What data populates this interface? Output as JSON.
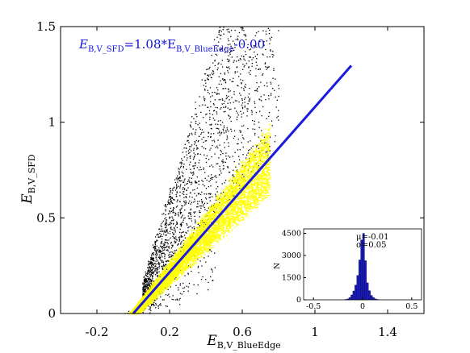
{
  "chart_data": [
    {
      "type": "scatter",
      "xlabel": {
        "main": "E",
        "sub": "B,V_BlueEdge"
      },
      "ylabel": {
        "main": "E",
        "sub": "B,V_SFD"
      },
      "xlim": [
        -0.4,
        1.6
      ],
      "ylim": [
        0,
        1.5
      ],
      "x_ticks": [
        -0.2,
        0.2,
        0.6,
        1,
        1.4
      ],
      "x_tick_labels": [
        "-0.2",
        "0.2",
        "0.6",
        "1",
        "1.4"
      ],
      "y_ticks": [
        0,
        0.5,
        1,
        1.5
      ],
      "y_tick_labels": [
        "0",
        "0.5",
        "1",
        "1.5"
      ],
      "grid": false,
      "annotation": {
        "prefix": "E",
        "sub1": "B,V_SFD",
        "middle": "=1.08*E",
        "sub2": "B,V_BlueEdge",
        "suffix": "-0.00"
      },
      "fit_line": {
        "slope": 1.08,
        "intercept": 0.0,
        "x_range": [
          0.0,
          1.2
        ],
        "color": "#1a1ae0"
      },
      "series": [
        {
          "color": "#000000",
          "description_points": "scattered outlier population above the main relation",
          "clusters": [
            {
              "x_range": [
                0.05,
                0.8
              ],
              "y_over_x": [
                1.1,
                3.2
              ],
              "count": 2200
            },
            {
              "x_range": [
                -0.05,
                0.45
              ],
              "y_over_x": [
                0.3,
                0.85
              ],
              "count": 200
            }
          ]
        },
        {
          "color": "#ffff00",
          "clusters": [
            {
              "x_range": [
                -0.1,
                0.75
              ],
              "y_over_x": [
                0.85,
                1.3
              ],
              "count": 9000
            }
          ]
        }
      ]
    },
    {
      "type": "bar",
      "role": "inset-histogram",
      "xlim": [
        -0.6,
        0.6
      ],
      "ylim": [
        0,
        4800
      ],
      "x_ticks": [
        -0.5,
        0,
        0.5
      ],
      "x_tick_labels": [
        "-0.5",
        "0",
        "0.5"
      ],
      "y_ticks": [
        0,
        1500,
        3000,
        4500
      ],
      "y_tick_labels": [
        "0",
        "1500",
        "3000",
        "4500"
      ],
      "ylabel": "N",
      "bar_color": "#1a1ab8",
      "bin_width": 0.02,
      "bin_centers": [
        -0.17,
        -0.15,
        -0.13,
        -0.11,
        -0.09,
        -0.07,
        -0.05,
        -0.03,
        -0.01,
        0.01,
        0.03,
        0.05,
        0.07,
        0.09,
        0.11,
        0.13,
        0.15
      ],
      "values": [
        30,
        60,
        150,
        330,
        600,
        1000,
        1650,
        2700,
        4050,
        4500,
        2650,
        1150,
        620,
        300,
        160,
        70,
        30
      ],
      "stats": [
        "μ=-0.01",
        "σ=0.05"
      ]
    }
  ]
}
